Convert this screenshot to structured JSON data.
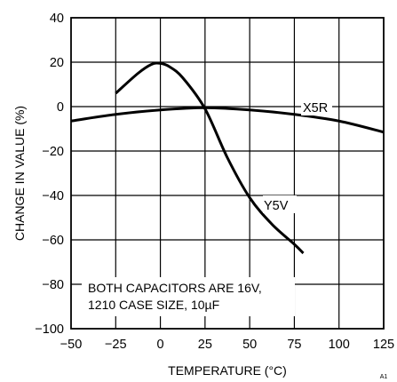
{
  "chart_data": {
    "type": "line",
    "xlabel": "TEMPERATURE (°C)",
    "ylabel": "CHANGE IN VALUE (%)",
    "xlim": [
      -50,
      125
    ],
    "ylim": [
      -100,
      40
    ],
    "x_ticks": [
      "−50",
      "−25",
      "0",
      "25",
      "50",
      "75",
      "100",
      "125"
    ],
    "y_ticks": [
      "40",
      "20",
      "0",
      "−20",
      "−40",
      "−60",
      "−80",
      "−100"
    ],
    "grid": true,
    "series": [
      {
        "name": "X5R",
        "x": [
          -50,
          -25,
          0,
          25,
          50,
          75,
          100,
          125
        ],
        "y": [
          -6.5,
          -3.5,
          -1.5,
          -0.5,
          -1.5,
          -3.5,
          -6.5,
          -11.5
        ]
      },
      {
        "name": "Y5V",
        "x": [
          -25,
          -12.5,
          -5,
          0,
          5,
          12.5,
          25,
          37.5,
          50,
          62.5,
          75,
          80
        ],
        "y": [
          6,
          15,
          19,
          19.5,
          18,
          13,
          -1,
          -23,
          -41,
          -53,
          -62,
          -66
        ]
      }
    ],
    "annotations": [
      "BOTH CAPACITORS ARE 16V,",
      "1210 CASE SIZE, 10µF"
    ],
    "figure_tag": "A1"
  }
}
